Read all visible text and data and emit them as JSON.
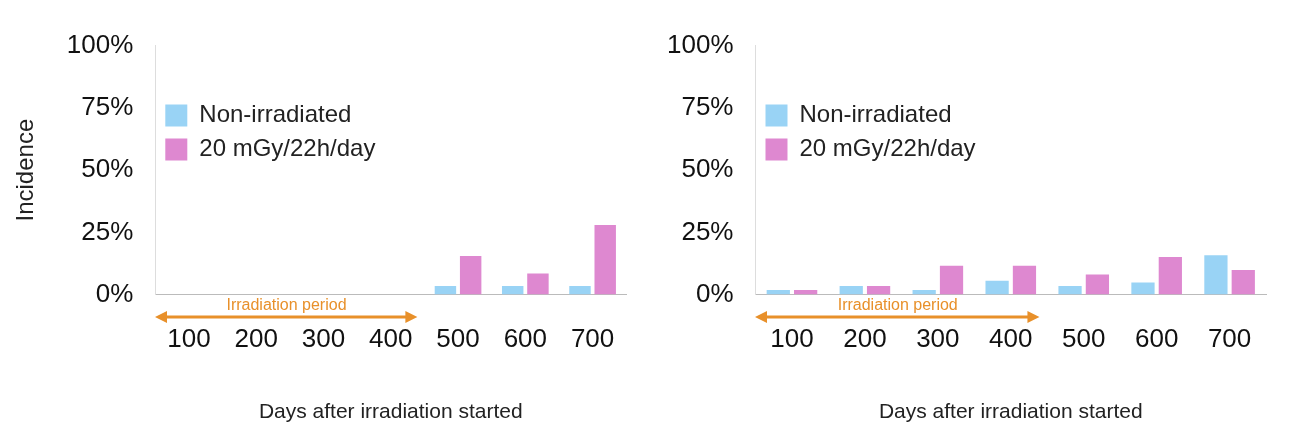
{
  "chart_data": [
    {
      "type": "bar",
      "xlabel": "Days after irradiation started",
      "ylabel": "Incidence",
      "categories": [
        "100",
        "200",
        "300",
        "400",
        "500",
        "600",
        "700"
      ],
      "series": [
        {
          "name": "Non-irradiated",
          "color": "#99d3f5",
          "values": [
            0,
            0,
            0,
            0,
            3.5,
            3.5,
            3.5
          ]
        },
        {
          "name": "20 mGy/22h/day",
          "color": "#de88d0",
          "values": [
            0,
            0,
            0,
            0,
            15.5,
            8.5,
            28
          ]
        }
      ],
      "ylim": [
        0,
        100
      ],
      "yticks": [
        {
          "value": 0,
          "label": "0%"
        },
        {
          "value": 25,
          "label": "25%"
        },
        {
          "value": 50,
          "label": "50%"
        },
        {
          "value": 75,
          "label": "75%"
        },
        {
          "value": 100,
          "label": "100%"
        }
      ],
      "annotations": [
        "Irradiation period"
      ],
      "grid": false,
      "legend": "top"
    },
    {
      "type": "bar",
      "xlabel": "Days after irradiation started",
      "categories": [
        "100",
        "200",
        "300",
        "400",
        "500",
        "600",
        "700"
      ],
      "series": [
        {
          "name": "Non-irradiated",
          "color": "#99d3f5",
          "values": [
            1.8,
            3.5,
            1.8,
            5.6,
            3.5,
            4.9,
            15.8
          ]
        },
        {
          "name": "20 mGy/22h/day",
          "color": "#de88d0",
          "values": [
            1.8,
            3.5,
            11.6,
            11.6,
            8.1,
            15.1,
            9.9
          ]
        }
      ],
      "ylim": [
        0,
        100
      ],
      "yticks": [
        {
          "value": 0,
          "label": "0%"
        },
        {
          "value": 25,
          "label": "25%"
        },
        {
          "value": 50,
          "label": "50%"
        },
        {
          "value": 75,
          "label": "75%"
        },
        {
          "value": 100,
          "label": "100%"
        }
      ],
      "annotations": [
        "Irradiation period"
      ],
      "grid": false,
      "legend": "top"
    }
  ]
}
